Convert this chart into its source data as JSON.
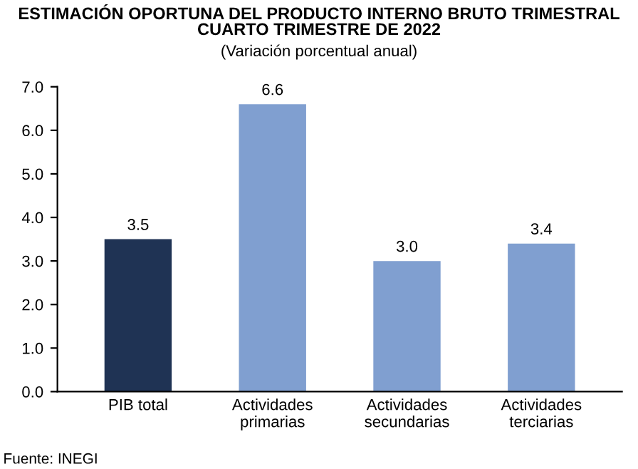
{
  "chart_data": {
    "type": "bar",
    "title": "ESTIMACIÓN OPORTUNA DEL PRODUCTO INTERNO BRUTO TRIMESTRAL\nCUARTO TRIMESTRE DE 2022",
    "subtitle": "(Variación porcentual anual)",
    "categories": [
      "PIB total",
      "Actividades\nprimarias",
      "Actividades\nsecundarias",
      "Actividades\nterciarias"
    ],
    "values": [
      3.5,
      6.6,
      3.0,
      3.4
    ],
    "colors": [
      "#1f3354",
      "#809fd0",
      "#809fd0",
      "#809fd0"
    ],
    "ylim": [
      0,
      7
    ],
    "yticks": [
      {
        "value": 0,
        "label": "0.0"
      },
      {
        "value": 1,
        "label": "1.0"
      },
      {
        "value": 2,
        "label": "2.0"
      },
      {
        "value": 3,
        "label": "3.0"
      },
      {
        "value": 4,
        "label": "4.0"
      },
      {
        "value": 5,
        "label": "5.0"
      },
      {
        "value": 6,
        "label": "6.0"
      },
      {
        "value": 7,
        "label": "7.0"
      }
    ],
    "value_labels": [
      "3.5",
      "6.6",
      "3.0",
      "3.4"
    ],
    "annotations": [
      "Fuente: INEGI"
    ]
  }
}
